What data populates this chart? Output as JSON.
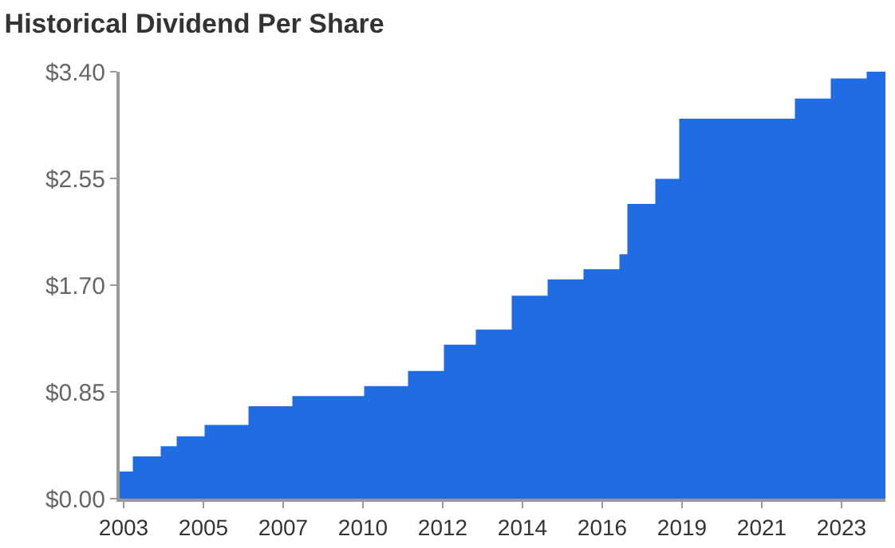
{
  "chart_data": {
    "type": "area",
    "title": "Historical Dividend Per Share",
    "categories": [
      null,
      "2003",
      null,
      null,
      null,
      null,
      null,
      null,
      null,
      null,
      null,
      null,
      null,
      null,
      null,
      null,
      null,
      null,
      null,
      null,
      null,
      "2005",
      null,
      null,
      null,
      null,
      null,
      null,
      null,
      null,
      null,
      null,
      null,
      null,
      null,
      null,
      null,
      null,
      null,
      null,
      null,
      "2007",
      null,
      null,
      null,
      null,
      null,
      null,
      null,
      null,
      null,
      null,
      null,
      null,
      null,
      null,
      null,
      null,
      null,
      null,
      null,
      "2010",
      null,
      null,
      null,
      null,
      null,
      null,
      null,
      null,
      null,
      null,
      null,
      null,
      null,
      null,
      null,
      null,
      null,
      null,
      null,
      "2012",
      null,
      null,
      null,
      null,
      null,
      null,
      null,
      null,
      null,
      null,
      null,
      null,
      null,
      null,
      null,
      null,
      null,
      null,
      null,
      "2014",
      null,
      null,
      null,
      null,
      null,
      null,
      null,
      null,
      null,
      null,
      null,
      null,
      null,
      null,
      null,
      null,
      null,
      null,
      null,
      "2016",
      null,
      null,
      null,
      null,
      null,
      null,
      null,
      null,
      null,
      null,
      null,
      null,
      null,
      null,
      null,
      null,
      null,
      null,
      null,
      "2019",
      null,
      null,
      null,
      null,
      null,
      null,
      null,
      null,
      null,
      null,
      null,
      null,
      null,
      null,
      null,
      null,
      null,
      null,
      null,
      "2021",
      null,
      null,
      null,
      null,
      null,
      null,
      null,
      null,
      null,
      null,
      null,
      null,
      null,
      null,
      null,
      null,
      null,
      null,
      null,
      "2023",
      null,
      null,
      null,
      null,
      null,
      null,
      null,
      null,
      null,
      null,
      null
    ],
    "series": [
      {
        "color": "#1f6ce3",
        "values": [
          0.21,
          0.21,
          0.21,
          0.21,
          0.33,
          0.33,
          0.33,
          0.33,
          0.33,
          0.33,
          0.33,
          0.41,
          0.41,
          0.41,
          0.41,
          0.49,
          0.49,
          0.49,
          0.49,
          0.49,
          0.49,
          0.49,
          0.58,
          0.58,
          0.58,
          0.58,
          0.58,
          0.58,
          0.58,
          0.58,
          0.58,
          0.58,
          0.58,
          0.73,
          0.73,
          0.73,
          0.73,
          0.73,
          0.73,
          0.73,
          0.73,
          0.73,
          0.73,
          0.73,
          0.81,
          0.81,
          0.81,
          0.81,
          0.81,
          0.81,
          0.81,
          0.81,
          0.81,
          0.81,
          0.81,
          0.81,
          0.81,
          0.81,
          0.81,
          0.81,
          0.81,
          0.81,
          0.89,
          0.89,
          0.89,
          0.89,
          0.89,
          0.89,
          0.89,
          0.89,
          0.89,
          0.89,
          0.89,
          1.01,
          1.01,
          1.01,
          1.01,
          1.01,
          1.01,
          1.01,
          1.01,
          1.01,
          1.22,
          1.22,
          1.22,
          1.22,
          1.22,
          1.22,
          1.22,
          1.22,
          1.34,
          1.34,
          1.34,
          1.34,
          1.34,
          1.34,
          1.34,
          1.34,
          1.34,
          1.61,
          1.61,
          1.61,
          1.61,
          1.61,
          1.61,
          1.61,
          1.61,
          1.61,
          1.74,
          1.74,
          1.74,
          1.74,
          1.74,
          1.74,
          1.74,
          1.74,
          1.74,
          1.82,
          1.82,
          1.82,
          1.82,
          1.82,
          1.82,
          1.82,
          1.82,
          1.82,
          1.94,
          1.94,
          2.34,
          2.34,
          2.34,
          2.34,
          2.34,
          2.34,
          2.34,
          2.54,
          2.54,
          2.54,
          2.54,
          2.54,
          2.54,
          3.02,
          3.02,
          3.02,
          3.02,
          3.02,
          3.02,
          3.02,
          3.02,
          3.02,
          3.02,
          3.02,
          3.02,
          3.02,
          3.02,
          3.02,
          3.02,
          3.02,
          3.02,
          3.02,
          3.02,
          3.02,
          3.02,
          3.02,
          3.02,
          3.02,
          3.02,
          3.02,
          3.02,
          3.02,
          3.18,
          3.18,
          3.18,
          3.18,
          3.18,
          3.18,
          3.18,
          3.18,
          3.18,
          3.34,
          3.34,
          3.34,
          3.34,
          3.34,
          3.34,
          3.34,
          3.34,
          3.34,
          3.4,
          3.4,
          3.4,
          3.4,
          3.4
        ]
      }
    ],
    "ylim": [
      0,
      3.4
    ],
    "yticks": [
      {
        "value": 0,
        "label": "$0.00"
      },
      {
        "value": 0.85,
        "label": "$0.85"
      },
      {
        "value": 1.7,
        "label": "$1.70"
      },
      {
        "value": 2.55,
        "label": "$2.55"
      },
      {
        "value": 3.4,
        "label": "$3.40"
      }
    ]
  }
}
